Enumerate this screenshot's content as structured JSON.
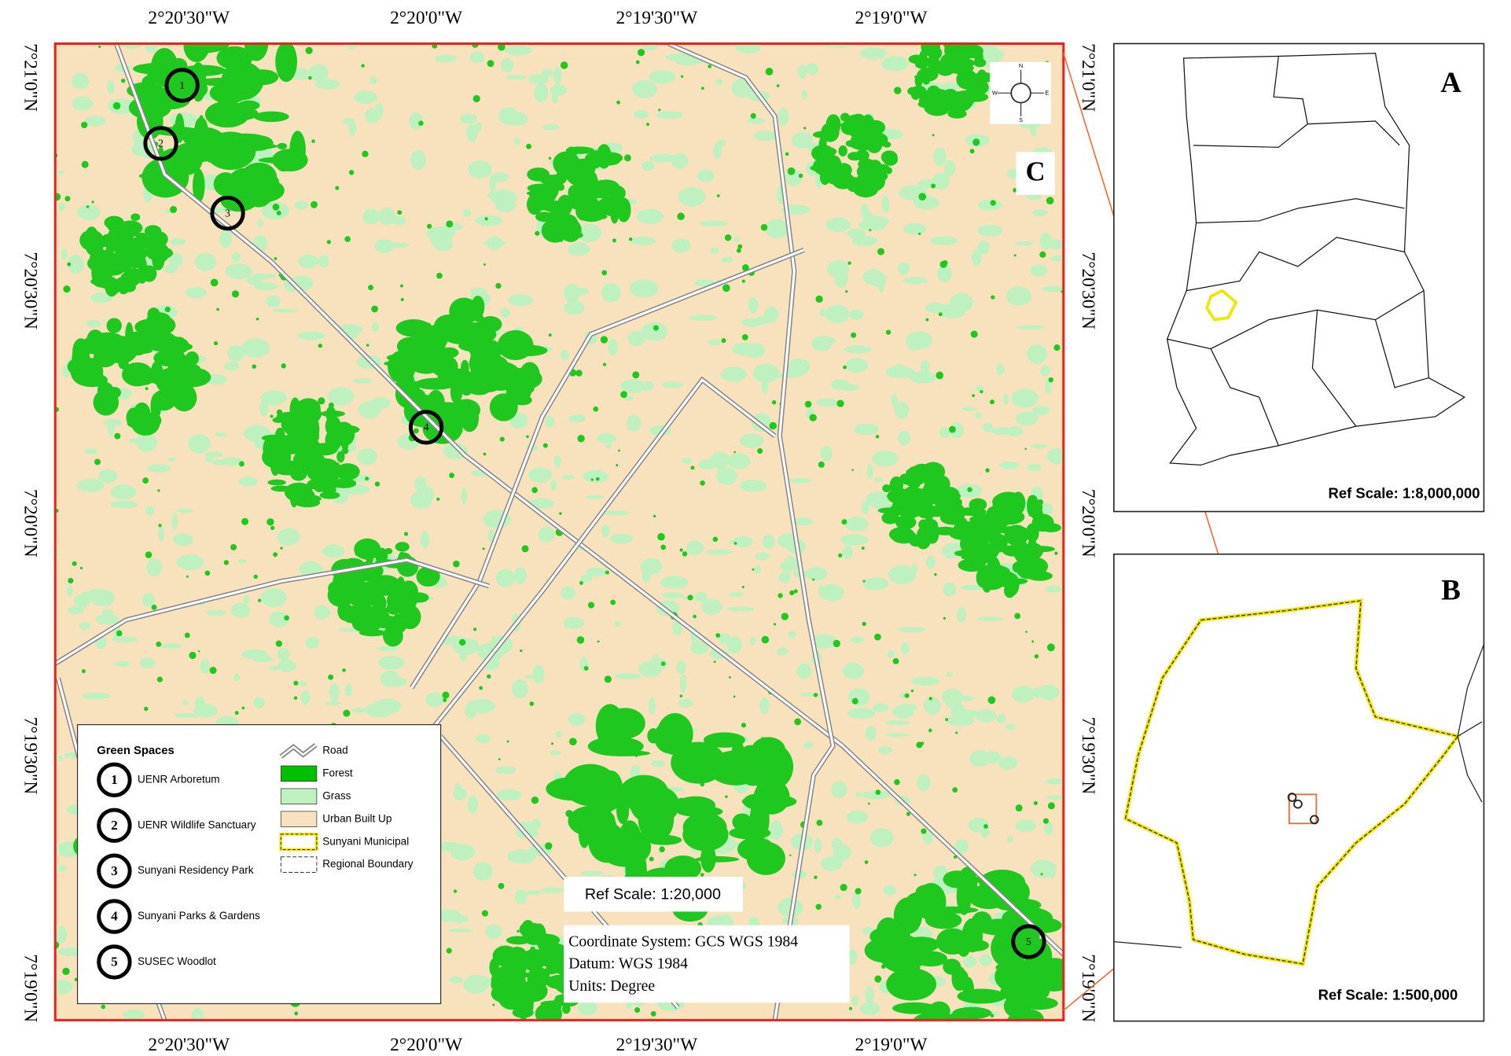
{
  "graticule": {
    "longitudes": [
      "2°20'30\"W",
      "2°20'0\"W",
      "2°19'30\"W",
      "2°19'0\"W"
    ],
    "latitudes": [
      "7°21'0\"N",
      "7°20'30\"N",
      "7°20'0\"N",
      "7°19'30\"N",
      "7°19'0\"N"
    ]
  },
  "main_map": {
    "label": "C",
    "compass": [
      "N",
      "E",
      "S",
      "W"
    ],
    "ref_scale": "Ref Scale: 1:20,000",
    "info": [
      "Coordinate System: GCS WGS 1984",
      "Datum: WGS 1984",
      "Units: Degree"
    ]
  },
  "legend": {
    "title": "Green Spaces",
    "green_spaces": [
      {
        "number": "1",
        "name": "UENR Arboretum"
      },
      {
        "number": "2",
        "name": "UENR Wildlife Sanctuary"
      },
      {
        "number": "3",
        "name": "Sunyani Residency Park"
      },
      {
        "number": "4",
        "name": "Sunyani Parks & Gardens"
      },
      {
        "number": "5",
        "name": "SUSEC Woodlot"
      }
    ],
    "classes": [
      "Road",
      "Forest",
      "Grass",
      "Urban Built Up",
      "Sunyani Municipal",
      "Regional Boundary"
    ]
  },
  "panel_a": {
    "label": "A",
    "ref_scale": "Ref Scale: 1:8,000,000"
  },
  "panel_b": {
    "label": "B",
    "ref_scale": "Ref Scale: 1:500,000"
  }
}
